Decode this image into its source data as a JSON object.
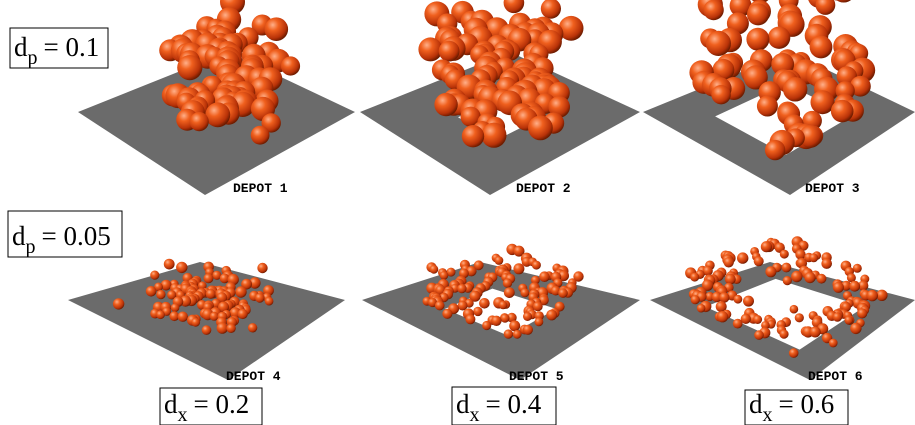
{
  "row_labels": [
    {
      "symbol": "d",
      "subscript": "p",
      "text": "= 0.1"
    },
    {
      "symbol": "d",
      "subscript": "p",
      "text": "= 0.05"
    }
  ],
  "panels": [
    {
      "label": "DEPOT 1"
    },
    {
      "label": "DEPOT 2"
    },
    {
      "label": "DEPOT 3"
    },
    {
      "label": "DEPOT 4"
    },
    {
      "label": "DEPOT 5"
    },
    {
      "label": "DEPOT 6"
    }
  ],
  "column_labels": [
    {
      "symbol": "d",
      "subscript": "x",
      "text": "= 0.2"
    },
    {
      "symbol": "d",
      "subscript": "x",
      "text": "= 0.4"
    },
    {
      "symbol": "d",
      "subscript": "x",
      "text": "= 0.6"
    }
  ]
}
